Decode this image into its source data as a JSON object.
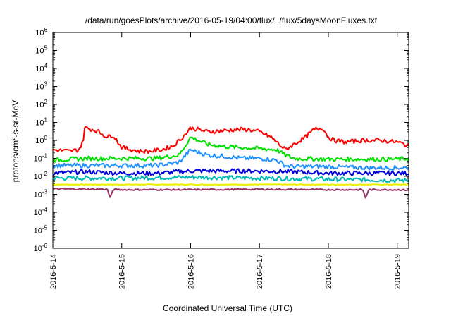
{
  "chart_data": {
    "type": "line",
    "title": "/data/run/goesPlots/archive/2016-05-19/04:00/flux/../flux/5daysMoonFluxes.txt",
    "xlabel": "Coordinated Universal Time (UTC)",
    "ylabel": {
      "base": "protons/cm",
      "sup": "2",
      "rest": "-s-sr-MeV"
    },
    "x_range": [
      "2016-05-14 00:00",
      "2016-05-19 04:00"
    ],
    "x_ticks": [
      "2016-5-14",
      "2016-5-15",
      "2016-5-16",
      "2016-5-17",
      "2016-5-18",
      "2016-5-19"
    ],
    "y_scale": "log",
    "y_range": [
      1e-06,
      1000000.0
    ],
    "y_ticks": [
      {
        "base": "10",
        "exp": "6"
      },
      {
        "base": "10",
        "exp": "5"
      },
      {
        "base": "10",
        "exp": "4"
      },
      {
        "base": "10",
        "exp": "3"
      },
      {
        "base": "10",
        "exp": "2"
      },
      {
        "base": "10",
        "exp": "1"
      },
      {
        "base": "10",
        "exp": "0"
      },
      {
        "base": "10",
        "exp": "-1"
      },
      {
        "base": "10",
        "exp": "-2"
      },
      {
        "base": "10",
        "exp": "-3"
      },
      {
        "base": "10",
        "exp": "-4"
      },
      {
        "base": "10",
        "exp": "-5"
      },
      {
        "base": "10",
        "exp": "-6"
      }
    ],
    "grid": false,
    "legend": "none",
    "series": [
      {
        "color": "#ff0000",
        "x": [
          "2016-05-14 00:00",
          "2016-05-14 06:00",
          "2016-05-14 09:00",
          "2016-05-14 10:30",
          "2016-05-14 11:00",
          "2016-05-14 14:00",
          "2016-05-14 16:00",
          "2016-05-14 19:00",
          "2016-05-14 21:00",
          "2016-05-15 00:00",
          "2016-05-15 06:00",
          "2016-05-15 10:00",
          "2016-05-15 14:00",
          "2016-05-15 18:00",
          "2016-05-15 22:00",
          "2016-05-16 00:00",
          "2016-05-16 06:00",
          "2016-05-16 12:00",
          "2016-05-16 16:00",
          "2016-05-16 20:00",
          "2016-05-17 00:00",
          "2016-05-17 04:00",
          "2016-05-17 06:00",
          "2016-05-17 09:00",
          "2016-05-17 12:00",
          "2016-05-17 16:00",
          "2016-05-17 19:00",
          "2016-05-17 22:00",
          "2016-05-18 00:00",
          "2016-05-18 02:00",
          "2016-05-18 06:00",
          "2016-05-18 12:00",
          "2016-05-18 18:00",
          "2016-05-19 00:00",
          "2016-05-19 04:00"
        ],
        "values": [
          0.3,
          0.25,
          0.3,
          0.8,
          5,
          4,
          3,
          1.5,
          2,
          0.4,
          0.25,
          0.25,
          0.3,
          0.5,
          2,
          5,
          3,
          3.5,
          4,
          4,
          3,
          1.5,
          0.8,
          0.3,
          0.6,
          1.5,
          4,
          5,
          1.5,
          1,
          0.8,
          1,
          1,
          0.8,
          0.5
        ]
      },
      {
        "color": "#00e000",
        "x": [
          "2016-05-14 00:00",
          "2016-05-14 12:00",
          "2016-05-15 00:00",
          "2016-05-15 12:00",
          "2016-05-15 20:00",
          "2016-05-16 00:00",
          "2016-05-16 06:00",
          "2016-05-16 12:00",
          "2016-05-16 18:00",
          "2016-05-17 00:00",
          "2016-05-17 06:00",
          "2016-05-17 09:00",
          "2016-05-17 12:00",
          "2016-05-18 00:00",
          "2016-05-18 12:00",
          "2016-05-19 00:00",
          "2016-05-19 04:00"
        ],
        "values": [
          0.08,
          0.1,
          0.1,
          0.1,
          0.15,
          1.5,
          0.6,
          0.45,
          0.4,
          0.35,
          0.3,
          0.15,
          0.1,
          0.09,
          0.09,
          0.09,
          0.1
        ]
      },
      {
        "color": "#1e90ff",
        "x": [
          "2016-05-14 00:00",
          "2016-05-14 12:00",
          "2016-05-15 00:00",
          "2016-05-15 12:00",
          "2016-05-15 20:00",
          "2016-05-16 00:00",
          "2016-05-16 06:00",
          "2016-05-16 12:00",
          "2016-05-16 18:00",
          "2016-05-17 00:00",
          "2016-05-17 06:00",
          "2016-05-17 09:00",
          "2016-05-17 12:00",
          "2016-05-18 00:00",
          "2016-05-18 12:00",
          "2016-05-19 00:00",
          "2016-05-19 04:00"
        ],
        "values": [
          0.04,
          0.04,
          0.04,
          0.04,
          0.06,
          0.3,
          0.15,
          0.13,
          0.1,
          0.1,
          0.08,
          0.04,
          0.035,
          0.035,
          0.03,
          0.03,
          0.03
        ]
      },
      {
        "color": "#0000dd",
        "x": [
          "2016-05-14 00:00",
          "2016-05-14 12:00",
          "2016-05-15 00:00",
          "2016-05-15 12:00",
          "2016-05-16 00:00",
          "2016-05-16 12:00",
          "2016-05-17 00:00",
          "2016-05-17 12:00",
          "2016-05-18 00:00",
          "2016-05-18 12:00",
          "2016-05-19 00:00",
          "2016-05-19 04:00"
        ],
        "values": [
          0.015,
          0.018,
          0.015,
          0.015,
          0.02,
          0.02,
          0.02,
          0.018,
          0.015,
          0.015,
          0.015,
          0.015
        ]
      },
      {
        "color": "#00b8b8",
        "x": [
          "2016-05-14 00:00",
          "2016-05-15 00:00",
          "2016-05-16 00:00",
          "2016-05-17 00:00",
          "2016-05-18 00:00",
          "2016-05-19 00:00",
          "2016-05-19 04:00"
        ],
        "values": [
          0.008,
          0.008,
          0.009,
          0.008,
          0.007,
          0.006,
          0.006
        ]
      },
      {
        "color": "#eeee00",
        "x": [
          "2016-05-14 00:00",
          "2016-05-15 00:00",
          "2016-05-16 00:00",
          "2016-05-17 00:00",
          "2016-05-18 00:00",
          "2016-05-19 00:00",
          "2016-05-19 04:00"
        ],
        "values": [
          0.0035,
          0.0035,
          0.0035,
          0.0035,
          0.0035,
          0.0035,
          0.0035
        ]
      },
      {
        "color": "#993366",
        "x": [
          "2016-05-14 00:00",
          "2016-05-14 19:00",
          "2016-05-14 20:00",
          "2016-05-14 21:00",
          "2016-05-15 00:00",
          "2016-05-16 00:00",
          "2016-05-17 00:00",
          "2016-05-18 00:00",
          "2016-05-18 12:00",
          "2016-05-18 13:00",
          "2016-05-18 14:00",
          "2016-05-19 00:00",
          "2016-05-19 04:00"
        ],
        "values": [
          0.002,
          0.0019,
          0.0006,
          0.0019,
          0.0018,
          0.0018,
          0.0019,
          0.0018,
          0.0018,
          0.0006,
          0.0018,
          0.0018,
          0.0017
        ]
      }
    ]
  }
}
